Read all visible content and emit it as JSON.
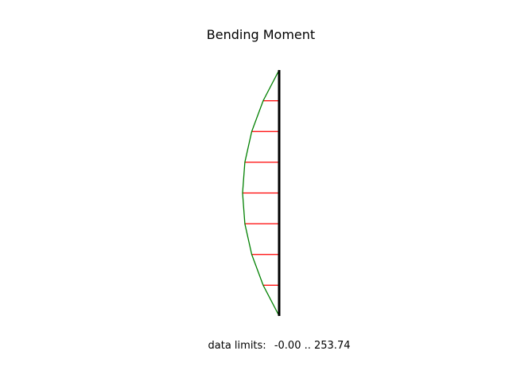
{
  "diagram": {
    "title": "Bending Moment",
    "footer_label": "data limits:",
    "footer_range": "-0.00 .. 253.74",
    "data_min": 0.0,
    "data_max": 253.74,
    "hatch_count": 7,
    "colors": {
      "beam": "#000000",
      "curve": "#008000",
      "hatch": "#ff0000"
    }
  }
}
